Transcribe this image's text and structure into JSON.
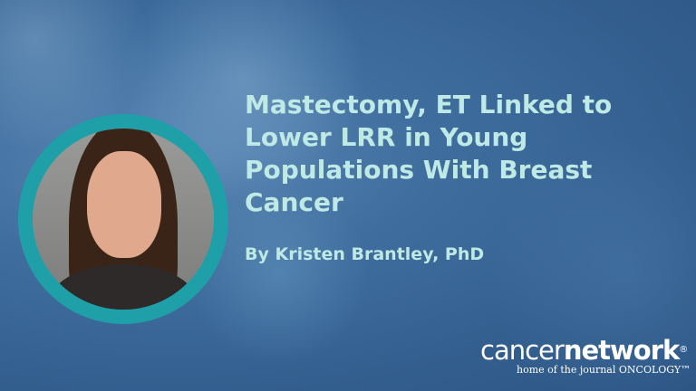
{
  "headline": "Mastectomy, ET Linked to Lower LRR in Young Populations With Breast Cancer",
  "byline": "By Kristen Brantley, PhD",
  "logo": {
    "part1": "cancer",
    "part2": "network",
    "reg": "®",
    "tagline": "home of the journal ONCOLOGY™"
  },
  "colors": {
    "ring": "#1fa0a8",
    "text": "#bfe9e4",
    "background": "#3f6e9e"
  }
}
